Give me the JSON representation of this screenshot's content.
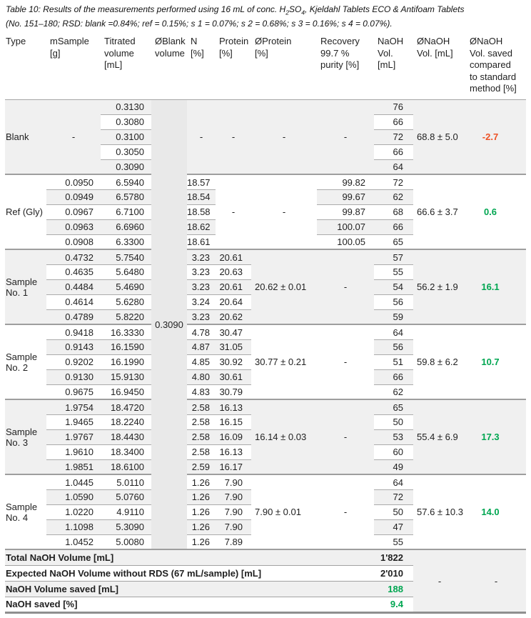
{
  "caption": {
    "line1_pre": "Table 10: Results of the measurements performed using 16 mL of conc. H",
    "line1_sub1": "2",
    "line1_mid": "SO",
    "line1_sub2": "4",
    "line1_post": ", Kjeldahl Tablets ECO & Antifoam Tablets",
    "line2": "(No. 151–180; RSD: blank =0.84%; ref = 0.15%; s 1 = 0.07%; s 2 = 0.68%; s 3 = 0.16%; s 4 = 0.07%)."
  },
  "colors": {
    "positive_green": "#00A651",
    "negative_orange": "#ED5226",
    "section_gray": "#F0F0F0",
    "border_gray": "#A6A6A6"
  },
  "table": {
    "headers": [
      "Type",
      "mSample\n[g]",
      "Titrated\nvolume\n[mL]",
      "ØBlank\nvolume",
      "N\n[%]",
      "Protein\n[%]",
      "ØProtein\n[%]",
      "Recovery\n99.7 %\npurity [%]",
      "NaOH\nVol.\n[mL]",
      "ØNaOH\nVol. [mL]",
      "ØNaOH\nVol. saved\ncompared\nto standard\nmethod [%]"
    ],
    "blank_volume": "0.3090",
    "groups": [
      {
        "type": "Blank",
        "mSample": "-",
        "titrated": [
          "0.3130",
          "0.3080",
          "0.3100",
          "0.3050",
          "0.3090"
        ],
        "n": "-",
        "protein": "-",
        "avg_protein": "-",
        "recovery": "-",
        "naoh": [
          "76",
          "66",
          "72",
          "66",
          "64"
        ],
        "avg_naoh": "68.8 ± 5.0",
        "saved": "-2.7",
        "saved_negative": true
      },
      {
        "type": "Ref (Gly)",
        "mSample": [
          "0.0950",
          "0.0949",
          "0.0967",
          "0.0963",
          "0.0908"
        ],
        "titrated": [
          "6.5940",
          "6.5780",
          "6.7100",
          "6.6960",
          "6.3300"
        ],
        "n": [
          "18.57",
          "18.54",
          "18.58",
          "18.62",
          "18.61"
        ],
        "protein": "-",
        "avg_protein": "-",
        "recovery": [
          "99.82",
          "99.67",
          "99.87",
          "100.07",
          "100.05"
        ],
        "naoh": [
          "72",
          "62",
          "68",
          "66",
          "65"
        ],
        "avg_naoh": "66.6 ± 3.7",
        "saved": "0.6",
        "saved_negative": false
      },
      {
        "type": "Sample No. 1",
        "mSample": [
          "0.4732",
          "0.4635",
          "0.4484",
          "0.4614",
          "0.4789"
        ],
        "titrated": [
          "5.7540",
          "5.6480",
          "5.4690",
          "5.6280",
          "5.8220"
        ],
        "n": [
          "3.23",
          "3.23",
          "3.23",
          "3.24",
          "3.23"
        ],
        "protein": [
          "20.61",
          "20.63",
          "20.61",
          "20.64",
          "20.62"
        ],
        "avg_protein": "20.62 ± 0.01",
        "recovery": "-",
        "naoh": [
          "57",
          "55",
          "54",
          "56",
          "59"
        ],
        "avg_naoh": "56.2 ± 1.9",
        "saved": "16.1",
        "saved_negative": false
      },
      {
        "type": "Sample No. 2",
        "mSample": [
          "0.9418",
          "0.9143",
          "0.9202",
          "0.9130",
          "0.9675"
        ],
        "titrated": [
          "16.3330",
          "16.1590",
          "16.1990",
          "15.9130",
          "16.9450"
        ],
        "n": [
          "4.78",
          "4.87",
          "4.85",
          "4.80",
          "4.83"
        ],
        "protein": [
          "30.47",
          "31.05",
          "30.92",
          "30.61",
          "30.79"
        ],
        "avg_protein": "30.77 ± 0.21",
        "recovery": "-",
        "naoh": [
          "64",
          "56",
          "51",
          "66",
          "62"
        ],
        "avg_naoh": "59.8 ± 6.2",
        "saved": "10.7",
        "saved_negative": false
      },
      {
        "type": "Sample No. 3",
        "mSample": [
          "1.9754",
          "1.9465",
          "1.9767",
          "1.9610",
          "1.9851"
        ],
        "titrated": [
          "18.4720",
          "18.2240",
          "18.4430",
          "18.3400",
          "18.6100"
        ],
        "n": [
          "2.58",
          "2.58",
          "2.58",
          "2.58",
          "2.59"
        ],
        "protein": [
          "16.13",
          "16.15",
          "16.09",
          "16.13",
          "16.17"
        ],
        "avg_protein": "16.14 ± 0.03",
        "recovery": "-",
        "naoh": [
          "65",
          "50",
          "53",
          "60",
          "49"
        ],
        "avg_naoh": "55.4 ± 6.9",
        "saved": "17.3",
        "saved_negative": false
      },
      {
        "type": "Sample No. 4",
        "mSample": [
          "1.0445",
          "1.0590",
          "1.0220",
          "1.1098",
          "1.0452"
        ],
        "titrated": [
          "5.0110",
          "5.0760",
          "4.9110",
          "5.3090",
          "5.0080"
        ],
        "n": [
          "1.26",
          "1.26",
          "1.26",
          "1.26",
          "1.26"
        ],
        "protein": [
          "7.90",
          "7.90",
          "7.90",
          "7.90",
          "7.89"
        ],
        "avg_protein": "7.90 ± 0.01",
        "recovery": "-",
        "naoh": [
          "64",
          "72",
          "50",
          "47",
          "55"
        ],
        "avg_naoh": "57.6 ± 10.3",
        "saved": "14.0",
        "saved_negative": false
      }
    ],
    "summary": [
      {
        "label": "Total NaOH Volume [mL]",
        "value": "1'822",
        "green": false
      },
      {
        "label": "Expected NaOH Volume without RDS (67 mL/sample) [mL]",
        "value": "2'010",
        "green": false
      },
      {
        "label": "NaOH Volume saved [mL]",
        "value": "188",
        "green": true
      },
      {
        "label": "NaOH saved [%]",
        "value": "9.4",
        "green": true
      }
    ],
    "summary_dashes": [
      "-",
      "-"
    ]
  }
}
